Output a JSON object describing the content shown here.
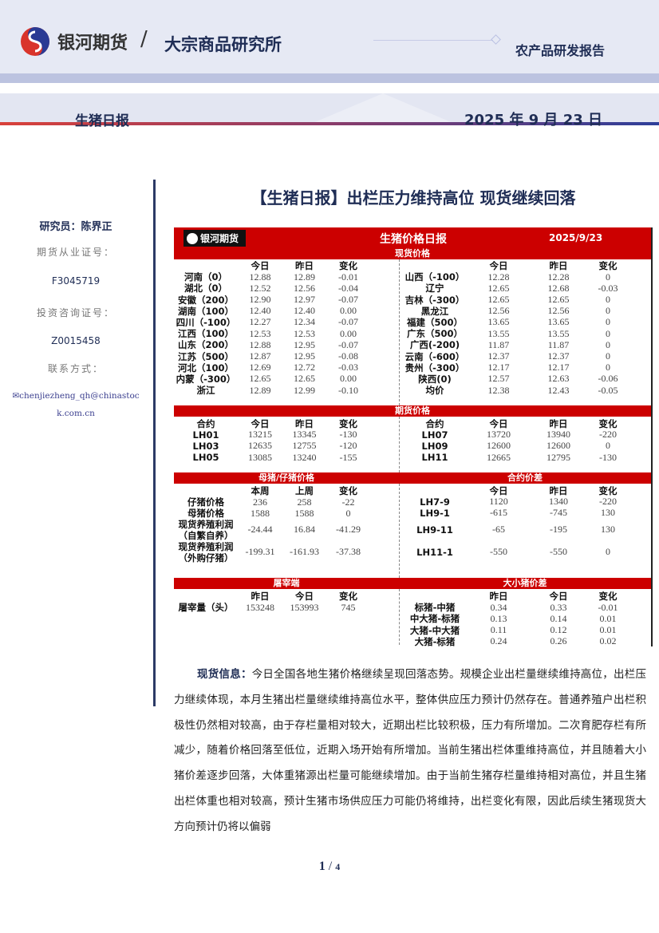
{
  "header": {
    "brand": "银河期货",
    "slash": "/",
    "institute": "大宗商品研究所",
    "report_type": "农产品研发报告",
    "report_name": "生猪日报",
    "report_date": "2025 年 9 月 23 日"
  },
  "colors": {
    "table_red": "#cc0000",
    "navy": "#1f2d55",
    "band": "#e6e9f4"
  },
  "sidebar": {
    "researcher": "研究员：陈界正",
    "futures_license_label": "期货从业证号：",
    "futures_license": "F3045719",
    "invest_license_label": "投资咨询证号：",
    "invest_license": "Z0015458",
    "contact_label": "联系方式：",
    "email": "chenjiezheng_qh@chinastock.com.cn",
    "email_icon": "envelope-icon"
  },
  "title": "【生猪日报】出栏压力维持高位  现货继续回落",
  "table": {
    "logo_text": "银河期货",
    "title": "生猪价格日报",
    "date": "2025/9/23",
    "spot": {
      "label": "现货价格",
      "left_header": [
        "",
        "今日",
        "昨日",
        "变化"
      ],
      "left": [
        [
          "河南（0）",
          "12.88",
          "12.89",
          "-0.01"
        ],
        [
          "湖北（0）",
          "12.52",
          "12.56",
          "-0.04"
        ],
        [
          "安徽（200）",
          "12.90",
          "12.97",
          "-0.07"
        ],
        [
          "湖南（100）",
          "12.40",
          "12.40",
          "0.00"
        ],
        [
          "四川（-100）",
          "12.27",
          "12.34",
          "-0.07"
        ],
        [
          "江西（100）",
          "12.53",
          "12.53",
          "0.00"
        ],
        [
          "山东（200）",
          "12.88",
          "12.95",
          "-0.07"
        ],
        [
          "江苏（500）",
          "12.87",
          "12.95",
          "-0.08"
        ],
        [
          "河北（100）",
          "12.69",
          "12.72",
          "-0.03"
        ],
        [
          "内蒙（-300）",
          "12.65",
          "12.65",
          "0.00"
        ],
        [
          "浙江",
          "12.89",
          "12.99",
          "-0.10"
        ]
      ],
      "right_header": [
        "",
        "今日",
        "昨日",
        "变化"
      ],
      "right": [
        [
          "山西（-100）",
          "12.28",
          "12.28",
          "0"
        ],
        [
          "辽宁",
          "12.65",
          "12.68",
          "-0.03"
        ],
        [
          "吉林（-300）",
          "12.65",
          "12.65",
          "0"
        ],
        [
          "黑龙江",
          "12.56",
          "12.56",
          "0"
        ],
        [
          "福建（500）",
          "13.65",
          "13.65",
          "0"
        ],
        [
          "广东（500）",
          "13.55",
          "13.55",
          "0"
        ],
        [
          "广西(-200)",
          "11.87",
          "11.87",
          "0"
        ],
        [
          "云南（-600）",
          "12.37",
          "12.37",
          "0"
        ],
        [
          "贵州（-300）",
          "12.17",
          "12.17",
          "0"
        ],
        [
          "陕西(0)",
          "12.57",
          "12.63",
          "-0.06"
        ],
        [
          "均价",
          "12.38",
          "12.43",
          "-0.05"
        ]
      ]
    },
    "futures": {
      "label": "期货价格",
      "left_header": [
        "合约",
        "今日",
        "昨日",
        "变化"
      ],
      "left": [
        [
          "LH01",
          "13215",
          "13345",
          "-130"
        ],
        [
          "LH03",
          "12635",
          "12755",
          "-120"
        ],
        [
          "LH05",
          "13085",
          "13240",
          "-155"
        ]
      ],
      "right_header": [
        "合约",
        "今日",
        "昨日",
        "变化"
      ],
      "right": [
        [
          "LH07",
          "13720",
          "13940",
          "-220"
        ],
        [
          "LH09",
          "12600",
          "12600",
          "0"
        ],
        [
          "LH11",
          "12665",
          "12795",
          "-130"
        ]
      ]
    },
    "sow": {
      "label_left": "母猪/仔猪价格",
      "label_right": "合约价差",
      "left_header": [
        "",
        "本周",
        "上周",
        "变化"
      ],
      "left": [
        [
          "仔猪价格",
          "236",
          "258",
          "-22"
        ],
        [
          "母猪价格",
          "1588",
          "1588",
          "0"
        ],
        [
          "现货养殖利润（自繁自养）",
          "-24.44",
          "16.84",
          "-41.29"
        ],
        [
          "现货养殖利润（外购仔猪）",
          "-199.31",
          "-161.93",
          "-37.38"
        ]
      ],
      "right_header": [
        "",
        "今日",
        "昨日",
        "变化"
      ],
      "right": [
        [
          "LH7-9",
          "1120",
          "1340",
          "-220"
        ],
        [
          "LH9-1",
          "-615",
          "-745",
          "130"
        ],
        [
          "LH9-11",
          "-65",
          "-195",
          "130"
        ],
        [
          "LH11-1",
          "-550",
          "-550",
          "0"
        ]
      ]
    },
    "slaughter": {
      "label_left": "屠宰端",
      "label_right": "大小猪价差",
      "left_header": [
        "",
        "昨日",
        "今日",
        "变化"
      ],
      "left": [
        [
          "屠宰量（头）",
          "153248",
          "153993",
          "745"
        ]
      ],
      "right_header": [
        "",
        "昨日",
        "今日",
        "变化"
      ],
      "right": [
        [
          "标猪-中猪",
          "0.34",
          "0.33",
          "-0.01"
        ],
        [
          "中大猪-标猪",
          "0.13",
          "0.14",
          "0.01"
        ],
        [
          "大猪-中大猪",
          "0.11",
          "0.12",
          "0.01"
        ],
        [
          "大猪-标猪",
          "0.24",
          "0.26",
          "0.02"
        ]
      ]
    }
  },
  "body": {
    "lead": "现货信息：",
    "text": "今日全国各地生猪价格继续呈现回落态势。规模企业出栏量继续维持高位，出栏压力继续体现，本月生猪出栏量继续维持高位水平，整体供应压力预计仍然存在。普通养殖户出栏积极性仍然相对较高，由于存栏量相对较大，近期出栏比较积极，压力有所增加。二次育肥存栏有所减少，随着价格回落至低位，近期入场开始有所增加。当前生猪出栏体重维持高位，并且随着大小猪价差逐步回落，大体重猪源出栏量可能继续增加。由于当前生猪存栏量维持相对高位，并且生猪出栏体重也相对较高，预计生猪市场供应压力可能仍将维持，出栏变化有限，因此后续生猪现货大方向预计仍将以偏弱"
  },
  "page": {
    "current": "1",
    "sep": " / ",
    "total": "4"
  }
}
